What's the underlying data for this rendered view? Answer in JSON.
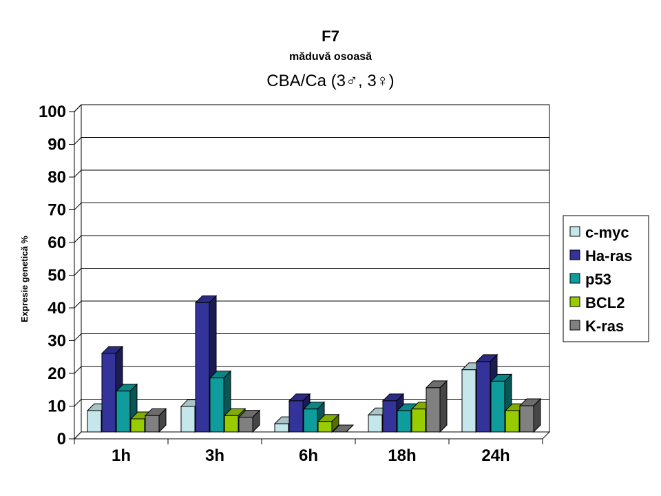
{
  "chart_data": {
    "type": "bar",
    "title": "F7",
    "subtitle": "măduvă osoasă",
    "subtitle2": "CBA/Ca (3♂, 3♀)",
    "xlabel": "",
    "ylabel": "Expresie genetică %",
    "ylim": [
      0,
      100
    ],
    "yticks": [
      0,
      10,
      20,
      30,
      40,
      50,
      60,
      70,
      80,
      90,
      100
    ],
    "grid": true,
    "legend_position": "right",
    "categories": [
      "1h",
      "3h",
      "6h",
      "18h",
      "24h"
    ],
    "series": [
      {
        "name": "c-myc",
        "color": "#c5e6ea",
        "values": [
          6.5,
          7.8,
          2.5,
          5.2,
          19
        ]
      },
      {
        "name": "Ha-ras",
        "color": "#33339a",
        "values": [
          24,
          39.5,
          9.5,
          9.5,
          21.5
        ]
      },
      {
        "name": "p53",
        "color": "#0f9c9c",
        "values": [
          12.5,
          16.5,
          7,
          6.5,
          15.5
        ]
      },
      {
        "name": "BCL2",
        "color": "#99cc00",
        "values": [
          4,
          5,
          3.2,
          7,
          6.5
        ]
      },
      {
        "name": "K-ras",
        "color": "#808080",
        "values": [
          5,
          4.5,
          0,
          13.5,
          8
        ]
      }
    ]
  }
}
